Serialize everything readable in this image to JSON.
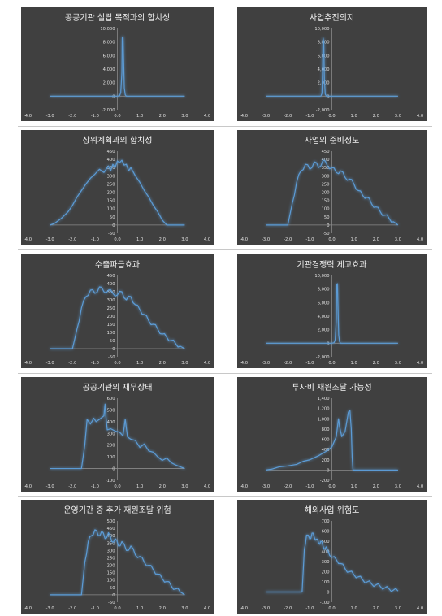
{
  "line_color": "#5b9bd5",
  "background_color": "#404040",
  "chart_data": [
    {
      "type": "line",
      "title": "공공기관 설립 목적과의 합치성",
      "xlim": [
        -4,
        4
      ],
      "xticks": [
        "-4.0",
        "-3.0",
        "-2.0",
        "-1.0",
        "0.0",
        "1.0",
        "2.0",
        "3.0",
        "4.0"
      ],
      "ylim": [
        -2000,
        10000
      ],
      "yticks": [
        "-2,000",
        "0",
        "2,000",
        "4,000",
        "6,000",
        "8,000",
        "10,000"
      ],
      "x": [
        -3.0,
        -0.2,
        0.0,
        0.1,
        0.15,
        0.2,
        0.22,
        0.25,
        0.28,
        0.31,
        0.35,
        0.4,
        0.6,
        3.0
      ],
      "y": [
        0,
        0,
        0,
        80,
        500,
        3500,
        8600,
        8800,
        5000,
        1200,
        200,
        0,
        0,
        0
      ]
    },
    {
      "type": "line",
      "title": "사업추진의지",
      "xlim": [
        -4,
        4
      ],
      "xticks": [
        "-4.0",
        "-3.0",
        "-2.0",
        "-1.0",
        "0.0",
        "1.0",
        "2.0",
        "3.0",
        "4.0"
      ],
      "ylim": [
        -2000,
        10000
      ],
      "yticks": [
        "-2,000",
        "0",
        "2,000",
        "4,000",
        "6,000",
        "8,000",
        "10,000"
      ],
      "x": [
        -3.0,
        -0.7,
        -0.5,
        -0.45,
        -0.42,
        -0.4,
        -0.37,
        -0.34,
        -0.3,
        -0.25,
        0.0,
        3.0
      ],
      "y": [
        0,
        0,
        0,
        400,
        4000,
        8600,
        8000,
        2500,
        300,
        0,
        0,
        0
      ]
    },
    {
      "type": "line",
      "title": "상위계획과의 합치성",
      "xlim": [
        -4,
        4
      ],
      "xticks": [
        "-4.0",
        "-3.0",
        "-2.0",
        "-1.0",
        "0.0",
        "1.0",
        "2.0",
        "3.0",
        "4.0"
      ],
      "ylim": [
        -50,
        450
      ],
      "yticks": [
        "-50",
        "0",
        "50",
        "100",
        "150",
        "200",
        "250",
        "300",
        "350",
        "400",
        "450"
      ],
      "x": [
        -3.0,
        -2.8,
        -2.5,
        -2.2,
        -2.0,
        -1.8,
        -1.6,
        -1.4,
        -1.2,
        -1.0,
        -0.8,
        -0.6,
        -0.4,
        -0.3,
        -0.2,
        -0.1,
        0.0,
        0.1,
        0.2,
        0.3,
        0.4,
        0.5,
        0.6,
        0.8,
        1.0,
        1.2,
        1.4,
        1.6,
        1.8,
        2.0,
        2.2,
        2.5,
        3.0
      ],
      "y": [
        0,
        10,
        40,
        80,
        120,
        170,
        210,
        250,
        285,
        310,
        340,
        320,
        360,
        330,
        370,
        350,
        390,
        380,
        395,
        365,
        370,
        330,
        350,
        300,
        260,
        210,
        170,
        120,
        80,
        30,
        0,
        0,
        0
      ]
    },
    {
      "type": "line",
      "title": "사업의 준비정도",
      "xlim": [
        -4,
        4
      ],
      "xticks": [
        "-4.0",
        "-3.0",
        "-2.0",
        "-1.0",
        "0.0",
        "1.0",
        "2.0",
        "3.0",
        "4.0"
      ],
      "ylim": [
        -50,
        450
      ],
      "yticks": [
        "-50",
        "0",
        "50",
        "100",
        "150",
        "200",
        "250",
        "300",
        "350",
        "400",
        "450"
      ],
      "x": [
        -3.0,
        -2.0,
        -1.8,
        -1.6,
        -1.4,
        -1.2,
        -1.0,
        -0.8,
        -0.6,
        -0.4,
        -0.2,
        0.0,
        0.2,
        0.4,
        0.6,
        0.8,
        1.0,
        1.2,
        1.4,
        1.6,
        1.8,
        2.0,
        2.2,
        2.4,
        2.6,
        2.8,
        3.0
      ],
      "y": [
        0,
        0,
        130,
        260,
        330,
        370,
        340,
        385,
        350,
        395,
        360,
        350,
        320,
        330,
        290,
        280,
        250,
        210,
        180,
        170,
        130,
        110,
        80,
        60,
        40,
        20,
        0
      ],
      "jagged": true
    },
    {
      "type": "line",
      "title": "수출파급효과",
      "xlim": [
        -4,
        4
      ],
      "xticks": [
        "-4.0",
        "-3.0",
        "-2.0",
        "-1.0",
        "0.0",
        "1.0",
        "2.0",
        "3.0",
        "4.0"
      ],
      "ylim": [
        -50,
        450
      ],
      "yticks": [
        "-50",
        "0",
        "50",
        "100",
        "150",
        "200",
        "250",
        "300",
        "350",
        "400",
        "450"
      ],
      "x": [
        -3.0,
        -2.0,
        -1.8,
        -1.6,
        -1.4,
        -1.2,
        -1.0,
        -0.8,
        -0.6,
        -0.4,
        -0.2,
        0.0,
        0.2,
        0.4,
        0.6,
        0.8,
        1.0,
        1.2,
        1.4,
        1.6,
        1.8,
        2.0,
        2.2,
        2.4,
        2.6,
        2.8,
        3.0
      ],
      "y": [
        0,
        0,
        120,
        250,
        320,
        360,
        340,
        380,
        350,
        360,
        340,
        330,
        350,
        300,
        320,
        270,
        240,
        210,
        170,
        150,
        120,
        90,
        70,
        50,
        30,
        15,
        0
      ],
      "jagged": true
    },
    {
      "type": "line",
      "title": "기관경쟁력 제고효과",
      "xlim": [
        -4,
        4
      ],
      "xticks": [
        "-4.0",
        "-3.0",
        "-2.0",
        "-1.0",
        "0.0",
        "1.0",
        "2.0",
        "3.0",
        "4.0"
      ],
      "ylim": [
        -2000,
        10000
      ],
      "yticks": [
        "-2,000",
        "0",
        "2,000",
        "4,000",
        "6,000",
        "8,000",
        "10,000"
      ],
      "x": [
        -3.0,
        -0.2,
        0.0,
        0.1,
        0.15,
        0.2,
        0.22,
        0.25,
        0.28,
        0.31,
        0.35,
        0.4,
        0.6,
        3.0
      ],
      "y": [
        0,
        0,
        0,
        80,
        500,
        3500,
        8600,
        8800,
        5000,
        1200,
        200,
        0,
        0,
        0
      ]
    },
    {
      "type": "line",
      "title": "공공기관의 재무상태",
      "xlim": [
        -4,
        4
      ],
      "xticks": [
        "-4.0",
        "-3.0",
        "-2.0",
        "-1.0",
        "0.0",
        "1.0",
        "2.0",
        "3.0",
        "4.0"
      ],
      "ylim": [
        -100,
        600
      ],
      "yticks": [
        "-100",
        "0",
        "100",
        "200",
        "300",
        "400",
        "500",
        "600"
      ],
      "x": [
        -3.0,
        -1.6,
        -1.45,
        -1.35,
        -1.2,
        -1.05,
        -0.95,
        -0.8,
        -0.6,
        -0.55,
        -0.5,
        -0.45,
        -0.3,
        -0.1,
        0.1,
        0.25,
        0.35,
        0.45,
        0.6,
        0.8,
        1.0,
        1.2,
        1.4,
        1.6,
        1.8,
        2.0,
        2.2,
        2.4,
        2.6,
        2.8,
        3.0
      ],
      "y": [
        0,
        0,
        200,
        420,
        380,
        430,
        400,
        420,
        450,
        550,
        420,
        330,
        340,
        320,
        310,
        280,
        420,
        270,
        250,
        240,
        180,
        210,
        150,
        140,
        100,
        70,
        90,
        50,
        30,
        15,
        0
      ]
    },
    {
      "type": "line",
      "title": "투자비 재원조달 가능성",
      "xlim": [
        -4,
        4
      ],
      "xticks": [
        "-4.0",
        "-3.0",
        "-2.0",
        "-1.0",
        "0.0",
        "1.0",
        "2.0",
        "3.0",
        "4.0"
      ],
      "ylim": [
        -200,
        1400
      ],
      "yticks": [
        "-200",
        "0",
        "200",
        "400",
        "600",
        "800",
        "1,000",
        "1,200",
        "1,400"
      ],
      "x": [
        -3.0,
        -2.7,
        -2.4,
        -2.0,
        -1.6,
        -1.3,
        -1.0,
        -0.8,
        -0.6,
        -0.4,
        -0.2,
        0.0,
        0.2,
        0.3,
        0.35,
        0.45,
        0.6,
        0.75,
        0.82,
        0.88,
        0.92,
        0.96,
        1.1,
        3.0
      ],
      "y": [
        0,
        20,
        60,
        80,
        110,
        170,
        200,
        240,
        280,
        330,
        380,
        450,
        650,
        1000,
        850,
        650,
        750,
        1130,
        1160,
        800,
        250,
        0,
        0,
        0
      ]
    },
    {
      "type": "line",
      "title": "운영기간 중 추가 재원조달 위험",
      "xlim": [
        -4,
        4
      ],
      "xticks": [
        "-4.0",
        "-3.0",
        "-2.0",
        "-1.0",
        "0.0",
        "1.0",
        "2.0",
        "3.0",
        "4.0"
      ],
      "ylim": [
        -50,
        500
      ],
      "yticks": [
        "-50",
        "0",
        "50",
        "100",
        "150",
        "200",
        "250",
        "300",
        "350",
        "400",
        "450",
        "500"
      ],
      "x": [
        -3.0,
        -1.6,
        -1.45,
        -1.3,
        -1.15,
        -1.0,
        -0.85,
        -0.7,
        -0.55,
        -0.4,
        -0.25,
        -0.1,
        0.05,
        0.2,
        0.4,
        0.6,
        0.8,
        1.0,
        1.2,
        1.4,
        1.6,
        1.8,
        2.0,
        2.2,
        2.4,
        2.6,
        2.8,
        3.0
      ],
      "y": [
        0,
        0,
        220,
        360,
        400,
        440,
        400,
        430,
        380,
        420,
        360,
        380,
        330,
        360,
        300,
        330,
        270,
        260,
        220,
        200,
        170,
        140,
        110,
        90,
        60,
        40,
        20,
        0
      ],
      "jagged": true
    },
    {
      "type": "line",
      "title": "해외사업 위험도",
      "xlim": [
        -4,
        4
      ],
      "xticks": [
        "-4.0",
        "-3.0",
        "-2.0",
        "-1.0",
        "0.0",
        "1.0",
        "2.0",
        "3.0",
        "4.0"
      ],
      "ylim": [
        -100,
        700
      ],
      "yticks": [
        "-100",
        "0",
        "100",
        "200",
        "300",
        "400",
        "500",
        "600",
        "700"
      ],
      "x": [
        -3.0,
        -1.35,
        -1.25,
        -1.15,
        -1.0,
        -0.9,
        -0.8,
        -0.7,
        -0.6,
        -0.5,
        -0.4,
        -0.3,
        -0.2,
        0.0,
        0.2,
        0.4,
        0.6,
        0.8,
        1.0,
        1.2,
        1.4,
        1.6,
        1.8,
        2.0,
        2.2,
        2.4,
        2.6,
        2.8,
        3.0
      ],
      "y": [
        0,
        0,
        420,
        560,
        520,
        580,
        540,
        520,
        480,
        500,
        450,
        430,
        420,
        340,
        320,
        280,
        230,
        200,
        170,
        150,
        120,
        100,
        80,
        70,
        55,
        40,
        30,
        20,
        10
      ],
      "jagged": true
    }
  ]
}
